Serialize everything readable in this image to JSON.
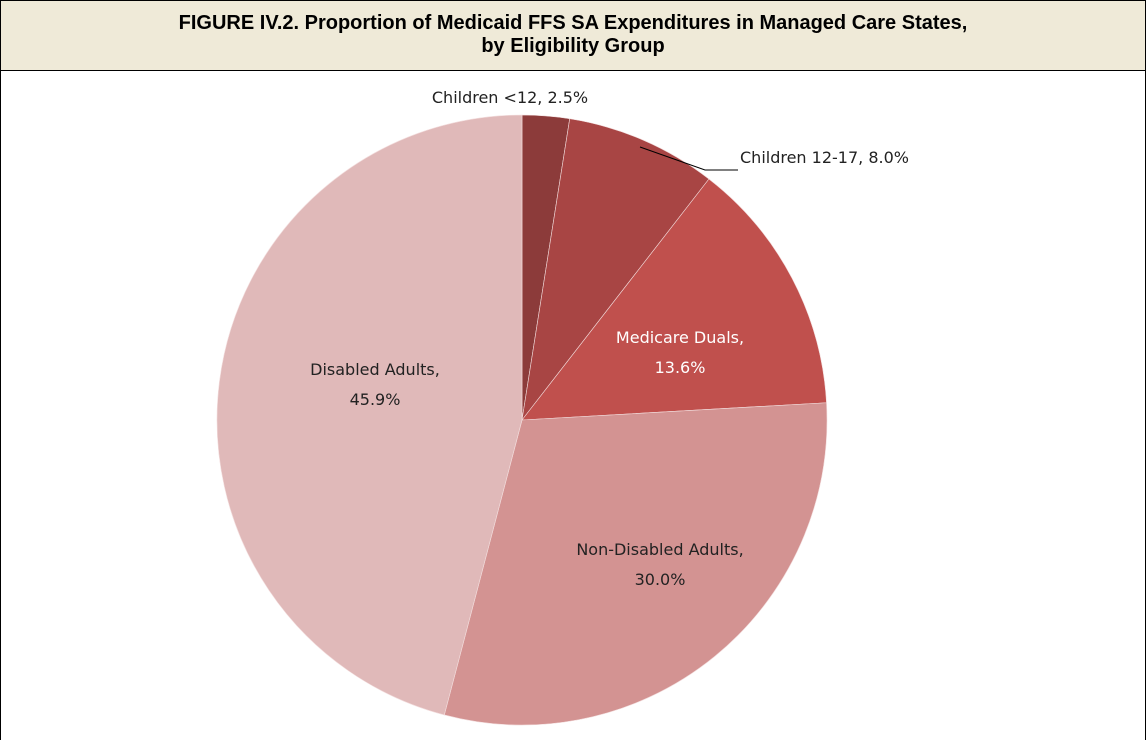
{
  "header": {
    "title": [
      "FIGURE IV.2. Proportion of Medicaid FFS SA Expenditures in Managed Care States,",
      "by Eligibility Group"
    ]
  },
  "chart_data": {
    "type": "pie",
    "values": [
      2.5,
      8.0,
      13.6,
      30.0,
      45.9
    ],
    "value_labels": [
      [
        "Children <12, 2.5%"
      ],
      [
        "Children 12-17, 8.0%"
      ],
      [
        "Medicare Duals,",
        "13.6%"
      ],
      [
        "Non-Disabled Adults,",
        "30.0%"
      ],
      [
        "Disabled Adults,",
        "45.9%"
      ]
    ],
    "colors": [
      "#8c3b3a",
      "#a84544",
      "#c0504d",
      "#d39392",
      "#e0b9b9"
    ]
  }
}
